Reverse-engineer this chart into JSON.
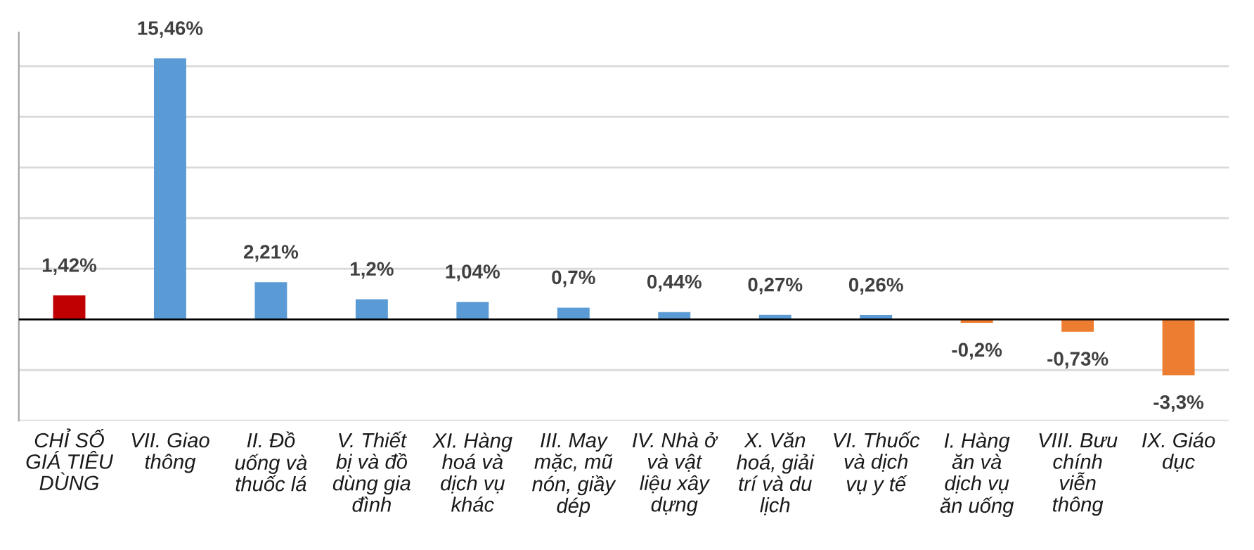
{
  "chart_data": {
    "type": "bar",
    "categories": [
      "CHỈ SỐ\nGIÁ TIÊU\nDÙNG",
      "VII. Giao\nthông",
      "II. Đồ\nuống và\nthuốc lá",
      "V. Thiết\nbị và đồ\ndùng gia\nđình",
      "XI. Hàng\nhoá và\ndịch vụ\nkhác",
      "III. May\nmặc, mũ\nnón, giầy\ndép",
      "IV. Nhà ở\nvà vật\nliệu xây\ndựng",
      "X. Văn\nhoá, giải\ntrí và du\nlịch",
      "VI. Thuốc\nvà dịch\nvụ y tế",
      "I. Hàng\năn và\ndịch vụ\năn uống",
      "VIII. Bưu\nchính\nviễn\nthông",
      "IX. Giáo\ndục"
    ],
    "values": [
      1.42,
      15.46,
      2.21,
      1.2,
      1.04,
      0.7,
      0.44,
      0.27,
      0.26,
      -0.2,
      -0.73,
      -3.3
    ],
    "colors": [
      "#c00000",
      "#5b9bd5",
      "#5b9bd5",
      "#5b9bd5",
      "#5b9bd5",
      "#5b9bd5",
      "#5b9bd5",
      "#5b9bd5",
      "#5b9bd5",
      "#ed7d31",
      "#ed7d31",
      "#ed7d31"
    ],
    "value_labels": [
      "1,42%",
      "15,46%",
      "2,21%",
      "1,2%",
      "1,04%",
      "0,7%",
      "0,44%",
      "0,27%",
      "0,26%",
      "-0,2%",
      "-0,73%",
      "-3,3%"
    ],
    "ylim": [
      -6,
      17
    ],
    "yticks": [
      {
        "value": -6,
        "label": null
      },
      {
        "value": -3,
        "label": null
      },
      {
        "value": 0,
        "label": null
      },
      {
        "value": 3,
        "label": null
      },
      {
        "value": 6,
        "label": null
      },
      {
        "value": 9,
        "label": null
      },
      {
        "value": 12,
        "label": null
      },
      {
        "value": 15,
        "label": null
      }
    ],
    "tick_labels": "x",
    "grid": "y",
    "legend": false
  }
}
